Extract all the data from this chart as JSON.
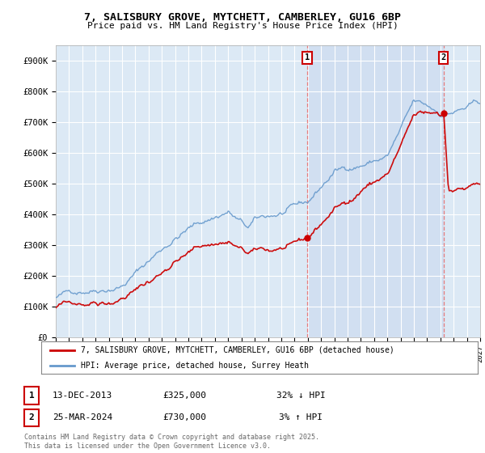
{
  "title_line1": "7, SALISBURY GROVE, MYTCHETT, CAMBERLEY, GU16 6BP",
  "title_line2": "Price paid vs. HM Land Registry's House Price Index (HPI)",
  "background_color": "#ffffff",
  "plot_bg_color": "#dce9f5",
  "grid_color": "#ffffff",
  "ylim": [
    0,
    950000
  ],
  "yticks": [
    0,
    100000,
    200000,
    300000,
    400000,
    500000,
    600000,
    700000,
    800000,
    900000
  ],
  "ytick_labels": [
    "£0",
    "£100K",
    "£200K",
    "£300K",
    "£400K",
    "£500K",
    "£600K",
    "£700K",
    "£800K",
    "£900K"
  ],
  "year_start": 1995,
  "year_end": 2027,
  "sale1_year": 2013.95,
  "sale1_price": 325000,
  "sale1_label": "1",
  "sale1_date": "13-DEC-2013",
  "sale1_pct": "32% ↓ HPI",
  "sale2_year": 2024.23,
  "sale2_price": 730000,
  "sale2_label": "2",
  "sale2_date": "25-MAR-2024",
  "sale2_pct": "3% ↑ HPI",
  "legend_line1": "7, SALISBURY GROVE, MYTCHETT, CAMBERLEY, GU16 6BP (detached house)",
  "legend_line2": "HPI: Average price, detached house, Surrey Heath",
  "footer": "Contains HM Land Registry data © Crown copyright and database right 2025.\nThis data is licensed under the Open Government Licence v3.0.",
  "line_color_red": "#cc0000",
  "line_color_blue": "#6699cc",
  "annotation_box_color": "#cc0000",
  "vline_color": "#e87070",
  "shade_color": "#c8d8ee"
}
